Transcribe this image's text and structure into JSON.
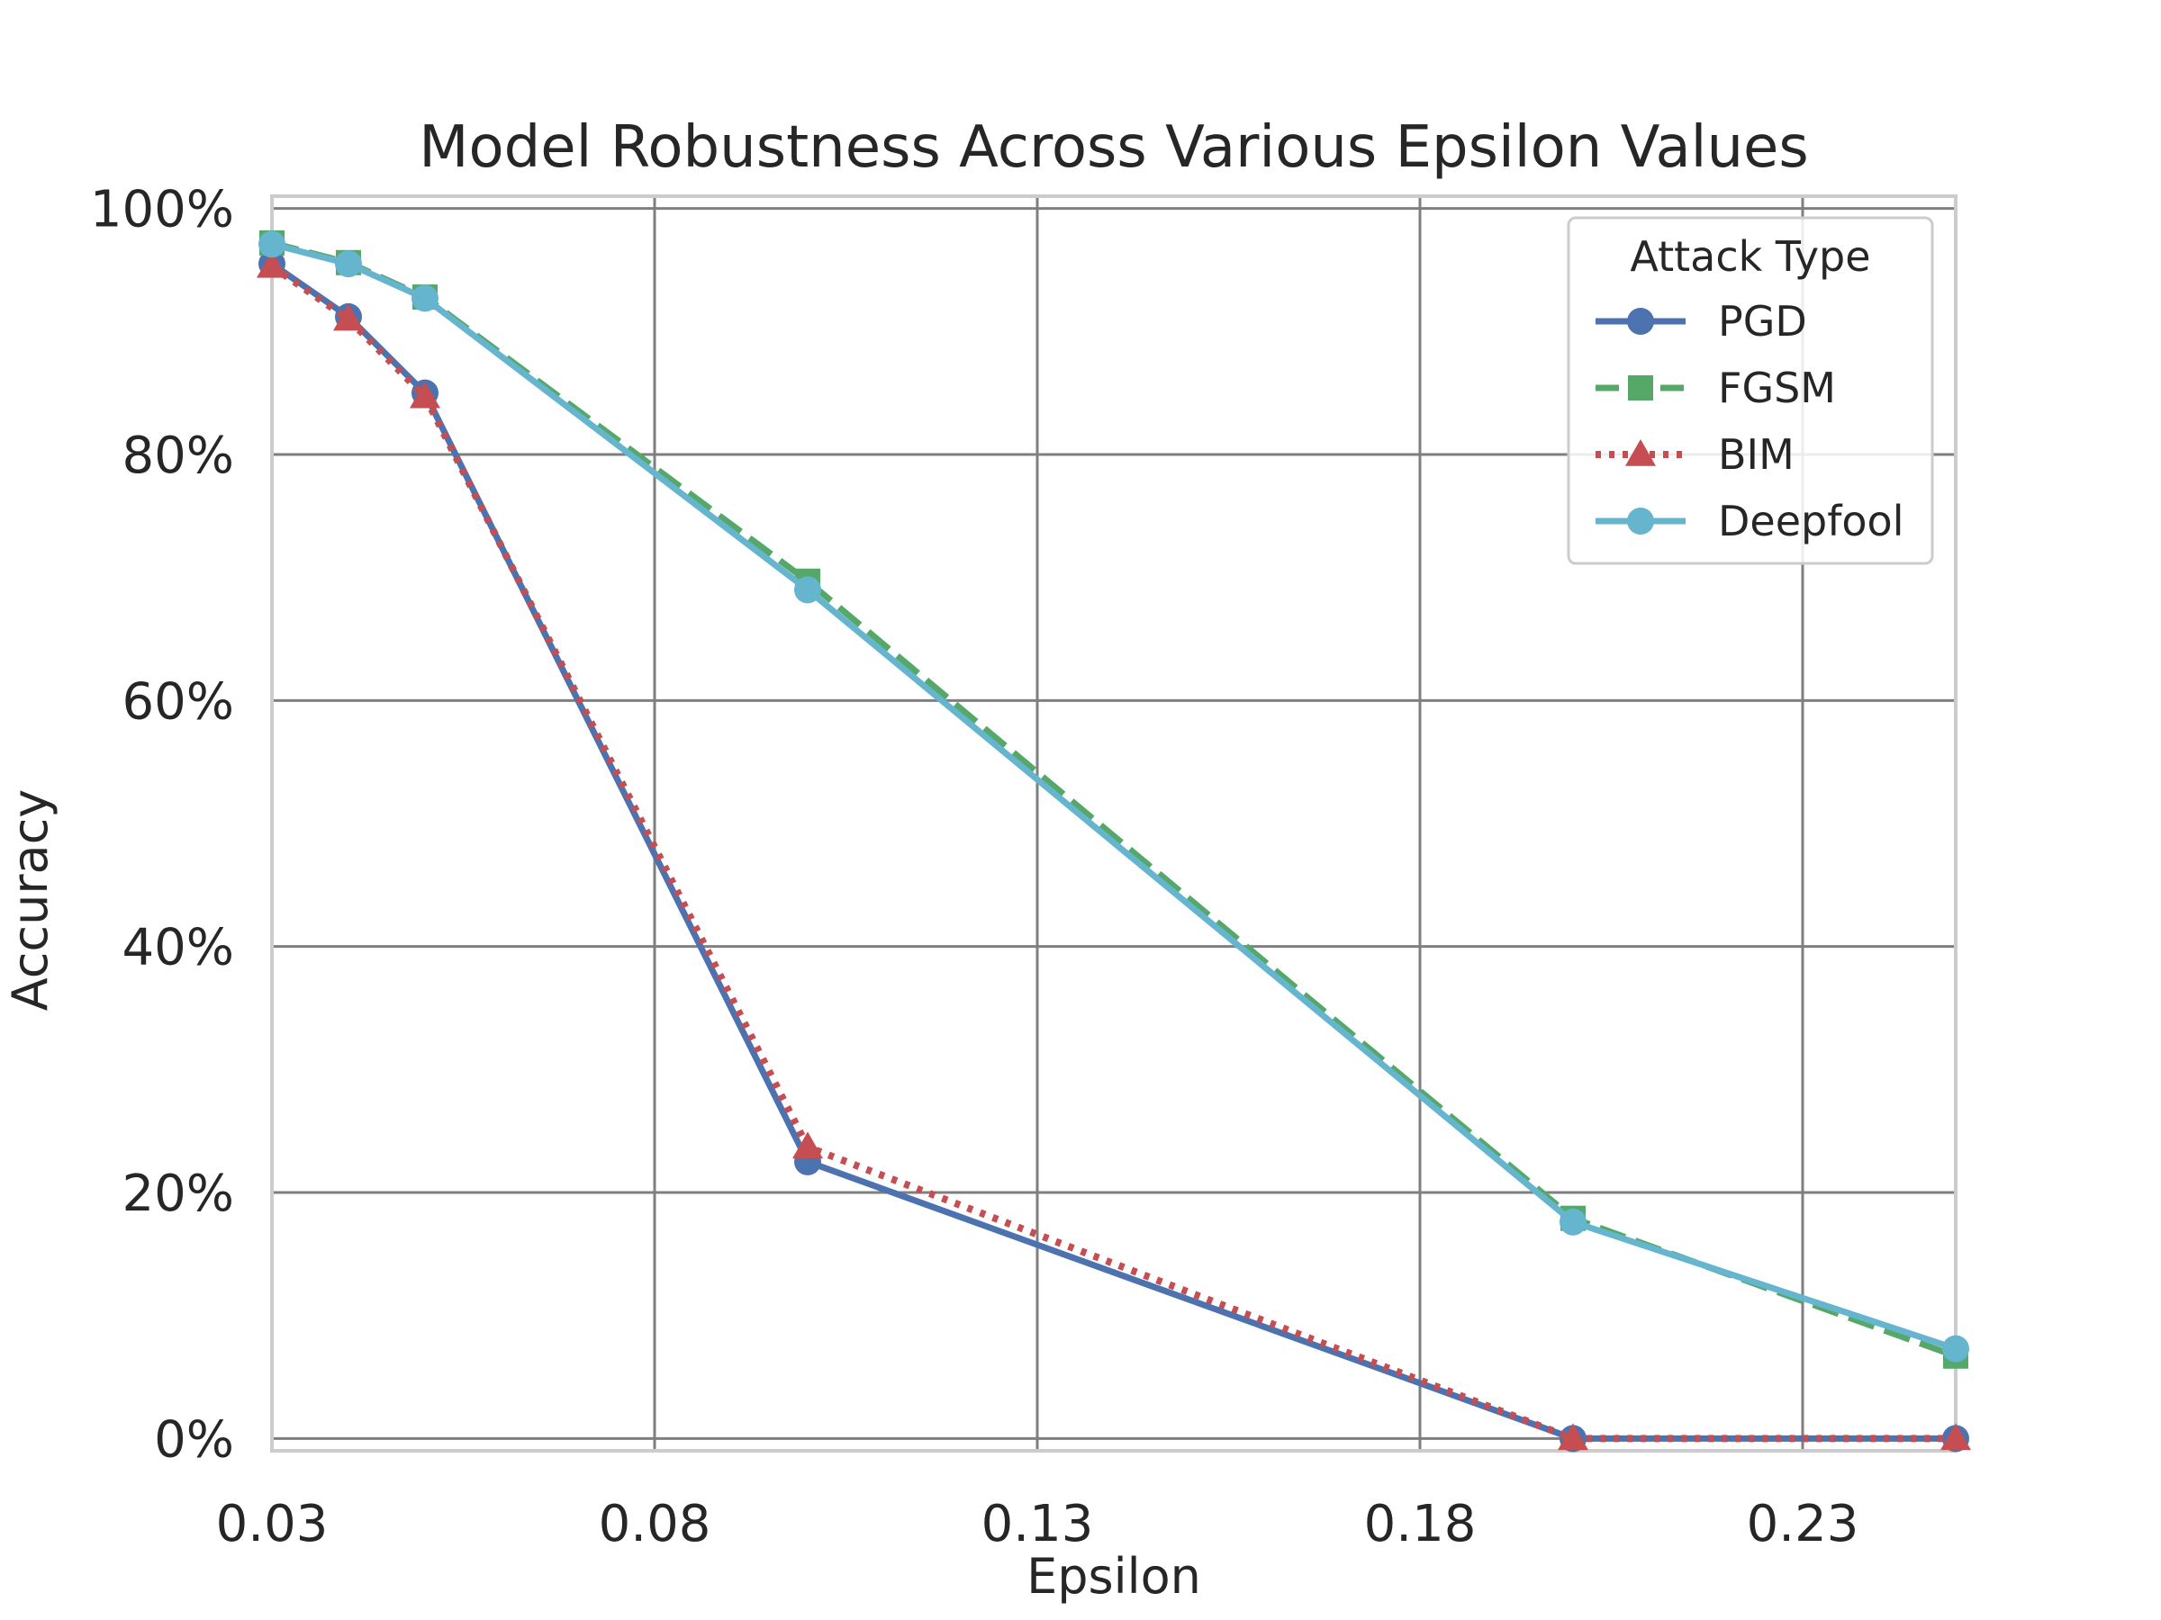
{
  "chart_data": {
    "type": "line",
    "title": "Model Robustness Across Various Epsilon Values",
    "xlabel": "Epsilon",
    "ylabel": "Accuracy",
    "xlim": [
      0.03,
      0.25
    ],
    "ylim": [
      -0.01,
      1.01
    ],
    "xticks": [
      0.03,
      0.08,
      0.13,
      0.18,
      0.23
    ],
    "xtick_labels": [
      "0.03",
      "0.08",
      "0.13",
      "0.18",
      "0.23"
    ],
    "yticks": [
      0,
      0.2,
      0.4,
      0.6,
      0.8,
      1.0
    ],
    "ytick_labels": [
      "0%",
      "20%",
      "40%",
      "60%",
      "80%",
      "100%"
    ],
    "grid": true,
    "legend": {
      "title": "Attack Type",
      "placement": "top-right"
    },
    "x": [
      0.03,
      0.04,
      0.05,
      0.1,
      0.2,
      0.25
    ],
    "series": [
      {
        "name": "PGD",
        "values": [
          0.955,
          0.912,
          0.85,
          0.225,
          0.0,
          0.0
        ],
        "color": "#4c72b0",
        "marker": "circle",
        "dash": "solid"
      },
      {
        "name": "FGSM",
        "values": [
          0.972,
          0.956,
          0.928,
          0.697,
          0.179,
          0.067
        ],
        "color": "#55a868",
        "marker": "square",
        "dash": "dashed"
      },
      {
        "name": "BIM",
        "values": [
          0.953,
          0.91,
          0.847,
          0.237,
          0.0,
          0.0
        ],
        "color": "#c44e52",
        "marker": "triangle",
        "dash": "dotted"
      },
      {
        "name": "Deepfool",
        "values": [
          0.971,
          0.955,
          0.927,
          0.69,
          0.176,
          0.073
        ],
        "color": "#64b5cd",
        "marker": "circle",
        "dash": "solid"
      }
    ]
  }
}
